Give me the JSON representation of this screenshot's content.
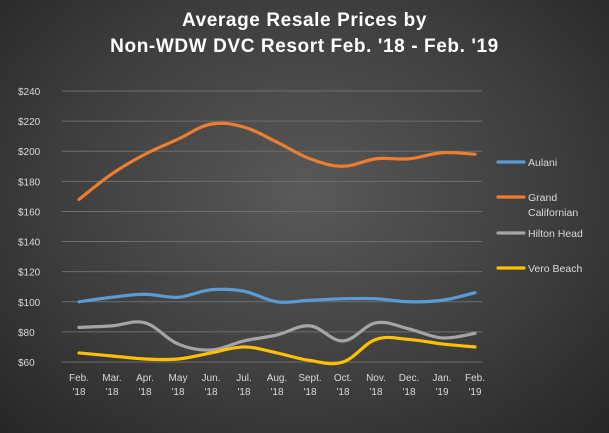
{
  "chart_data": {
    "type": "line",
    "title_lines": [
      "Average Resale Prices by",
      "Non-WDW DVC Resort Feb. '18 - Feb. '19"
    ],
    "xlabel": "",
    "ylabel": "",
    "ylim": [
      60,
      240
    ],
    "yticks": [
      60,
      80,
      100,
      120,
      140,
      160,
      180,
      200,
      220,
      240
    ],
    "ytick_labels": [
      "$60",
      "$80",
      "$100",
      "$120",
      "$140",
      "$160",
      "$180",
      "$200",
      "$220",
      "$240"
    ],
    "grid": true,
    "legend_position": "right",
    "categories": [
      [
        "Feb.",
        "'18"
      ],
      [
        "Mar.",
        "'18"
      ],
      [
        "Apr.",
        "'18"
      ],
      [
        "May",
        "'18"
      ],
      [
        "Jun.",
        "'18"
      ],
      [
        "Jul.",
        "'18"
      ],
      [
        "Aug.",
        "'18"
      ],
      [
        "Sept.",
        "'18"
      ],
      [
        "Oct.",
        "'18"
      ],
      [
        "Nov.",
        "'18"
      ],
      [
        "Dec.",
        "'18"
      ],
      [
        "Jan.",
        "'19"
      ],
      [
        "Feb.",
        "'19"
      ]
    ],
    "series": [
      {
        "name": "Aulani",
        "color": "#5b9bd5",
        "values": [
          100,
          103,
          105,
          103,
          108,
          107,
          100,
          101,
          102,
          102,
          100,
          101,
          106
        ]
      },
      {
        "name": "Grand Californian",
        "legend_lines": [
          "Grand",
          "Californian"
        ],
        "color": "#ed7d31",
        "values": [
          168,
          185,
          198,
          208,
          218,
          216,
          206,
          195,
          190,
          195,
          195,
          199,
          198
        ]
      },
      {
        "name": "Hilton Head",
        "color": "#a5a5a5",
        "values": [
          83,
          84,
          86,
          72,
          68,
          74,
          78,
          84,
          74,
          86,
          82,
          76,
          79
        ]
      },
      {
        "name": "Vero Beach",
        "color": "#ffc000",
        "values": [
          66,
          64,
          62,
          62,
          66,
          70,
          66,
          61,
          60,
          75,
          75,
          72,
          70
        ]
      }
    ]
  }
}
